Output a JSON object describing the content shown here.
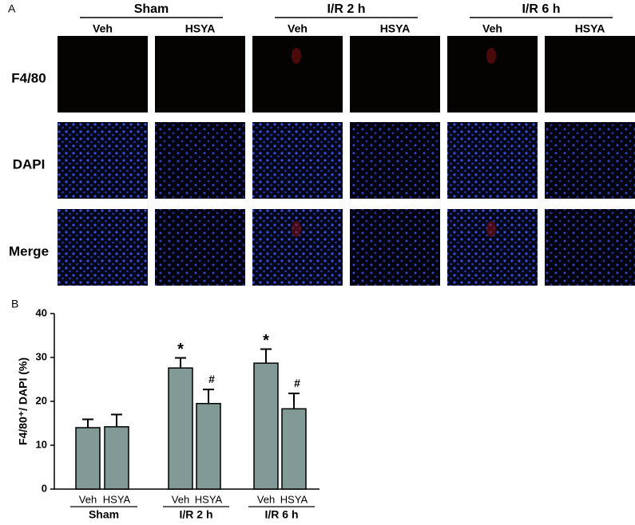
{
  "panel_a": {
    "label": "A",
    "groups": [
      {
        "name": "Sham",
        "columns": [
          "Veh",
          "HSYA"
        ]
      },
      {
        "name": "I/R 2 h",
        "columns": [
          "Veh",
          "HSYA"
        ]
      },
      {
        "name": "I/R 6 h",
        "columns": [
          "Veh",
          "HSYA"
        ]
      }
    ],
    "rows": [
      "F4/80",
      "DAPI",
      "Merge"
    ]
  },
  "chart_data": {
    "type": "bar",
    "panel_label": "B",
    "ylabel": "F4/80⁺/ DAPI (%)",
    "groups": [
      "Sham",
      "I/R 2 h",
      "I/R 6 h"
    ],
    "categories": [
      "Veh",
      "HSYA",
      "Veh",
      "HSYA",
      "Veh",
      "HSYA"
    ],
    "values": [
      14,
      14.2,
      27.6,
      19.5,
      28.7,
      18.3
    ],
    "errors": [
      1.9,
      2.8,
      2.3,
      3.2,
      3.2,
      3.5
    ],
    "annotations": [
      null,
      null,
      "*",
      "#",
      "*",
      "#"
    ],
    "color": "#829a96",
    "ylim": [
      0,
      40
    ],
    "yticks": [
      0,
      10,
      20,
      30,
      40
    ]
  }
}
